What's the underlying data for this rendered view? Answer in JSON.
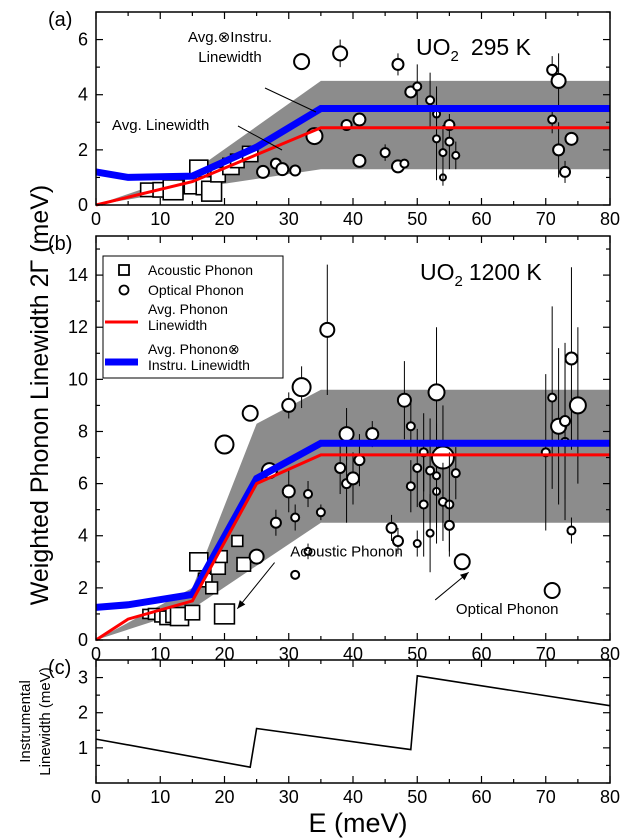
{
  "figure": {
    "ylabel_main": "Weighted Phonon Linewidth 2Γ (meV)",
    "xlabel": "E (meV)",
    "colors": {
      "band": "#8c8c8c",
      "red": "#ff0000",
      "blue": "#0000ff"
    }
  },
  "chart_data": [
    {
      "panel": "(a)",
      "type": "scatter",
      "title": "UO",
      "title_sub": "2",
      "title_tail": "295 K",
      "xlim": [
        0,
        80
      ],
      "ylim": [
        0,
        7
      ],
      "xticks": [
        0,
        10,
        20,
        30,
        40,
        50,
        60,
        70,
        80
      ],
      "yticks": [
        0,
        2,
        4,
        6
      ],
      "band_upper": [
        [
          15,
          1.2
        ],
        [
          35,
          4.5
        ],
        [
          80,
          4.5
        ]
      ],
      "band_lower": [
        [
          0,
          0
        ],
        [
          15,
          0.6
        ],
        [
          35,
          1.3
        ],
        [
          80,
          1.3
        ]
      ],
      "series": [
        {
          "name": "Avg.⊗Instru. Linewidth",
          "label_lines": [
            "Avg.⊗Instru.",
            "Linewidth"
          ],
          "values": [
            [
              0,
              1.2
            ],
            [
              5,
              1.0
            ],
            [
              15,
              1.05
            ],
            [
              25,
              2.1
            ],
            [
              35,
              3.5
            ],
            [
              80,
              3.5
            ]
          ]
        },
        {
          "name": "Avg. Linewidth",
          "label_lines": [
            "Avg. Linewidth"
          ],
          "values": [
            [
              0,
              0
            ],
            [
              15,
              0.85
            ],
            [
              35,
              2.8
            ],
            [
              80,
              2.8
            ]
          ]
        }
      ],
      "acoustic": [
        [
          8,
          0.55,
          1.5
        ],
        [
          10,
          0.55,
          1.6
        ],
        [
          12,
          0.55,
          2.2
        ],
        [
          15,
          0.7,
          1.8
        ],
        [
          16,
          1.3,
          2.0
        ],
        [
          17,
          0.7,
          2.0
        ],
        [
          18,
          0.5,
          2.2
        ],
        [
          19,
          1.1,
          1.6
        ],
        [
          21,
          1.4,
          1.8
        ],
        [
          22,
          1.6,
          1.5
        ],
        [
          24,
          1.85,
          1.7
        ]
      ],
      "optical": [
        [
          26,
          1.2,
          1.2,
          0
        ],
        [
          28,
          1.5,
          1.0,
          0
        ],
        [
          29,
          1.3,
          1.2,
          0
        ],
        [
          31,
          1.25,
          1.0,
          0
        ],
        [
          32,
          5.2,
          1.5,
          0
        ],
        [
          34,
          2.5,
          1.6,
          0.3
        ],
        [
          38,
          5.5,
          1.4,
          0.5
        ],
        [
          39,
          2.9,
          1.0,
          0
        ],
        [
          41,
          3.1,
          1.2,
          0
        ],
        [
          41,
          1.6,
          1.2,
          0
        ],
        [
          45,
          1.9,
          0.9,
          0.3
        ],
        [
          47,
          1.4,
          1.2,
          0.2
        ],
        [
          47,
          5.1,
          1.1,
          0.4
        ],
        [
          48,
          1.5,
          0.8,
          0
        ],
        [
          49,
          4.1,
          1.1,
          0
        ],
        [
          50,
          4.3,
          0.8,
          0.8
        ],
        [
          52,
          3.8,
          0.8,
          1.0
        ],
        [
          53,
          3.3,
          0.7,
          1.0
        ],
        [
          53,
          2.4,
          0.7,
          1.5
        ],
        [
          54,
          1.0,
          0.6,
          0.3
        ],
        [
          54,
          1.9,
          0.7,
          1.0
        ],
        [
          55,
          2.3,
          0.8,
          1.0
        ],
        [
          55,
          2.9,
          1.0,
          0
        ],
        [
          56,
          1.8,
          0.7,
          0.5
        ],
        [
          71,
          4.9,
          1.0,
          0.5
        ],
        [
          71,
          3.1,
          0.8,
          0.5
        ],
        [
          72,
          4.5,
          1.4,
          1.0
        ],
        [
          72,
          2.0,
          1.1,
          1.0
        ],
        [
          73,
          1.2,
          1.0,
          0.4
        ],
        [
          74,
          2.4,
          1.2,
          0
        ]
      ]
    },
    {
      "panel": "(b)",
      "type": "scatter",
      "title": "UO",
      "title_sub": "2",
      "title_tail": "1200 K",
      "xlim": [
        0,
        80
      ],
      "ylim": [
        0,
        15.5
      ],
      "xticks": [
        0,
        10,
        20,
        30,
        40,
        50,
        60,
        70,
        80
      ],
      "yticks": [
        0,
        2,
        4,
        6,
        8,
        10,
        12,
        14
      ],
      "band_upper": [
        [
          15,
          2.0
        ],
        [
          25,
          8.3
        ],
        [
          35,
          9.6
        ],
        [
          80,
          9.6
        ]
      ],
      "band_lower": [
        [
          0,
          0
        ],
        [
          15,
          1.2
        ],
        [
          35,
          4.5
        ],
        [
          80,
          4.5
        ]
      ],
      "series": [
        {
          "name": "Avg. Phonon⊗Instru. Linewidth",
          "values": [
            [
              0,
              1.25
            ],
            [
              5,
              1.35
            ],
            [
              15,
              1.75
            ],
            [
              25,
              6.2
            ],
            [
              35,
              7.55
            ],
            [
              80,
              7.55
            ]
          ]
        },
        {
          "name": "Avg. Phonon Linewidth",
          "values": [
            [
              0,
              0
            ],
            [
              5,
              0.8
            ],
            [
              15,
              1.5
            ],
            [
              25,
              6.0
            ],
            [
              35,
              7.1
            ],
            [
              80,
              7.1
            ]
          ]
        }
      ],
      "acoustic": [
        [
          8,
          1.0,
          1.0
        ],
        [
          9,
          1.0,
          1.2
        ],
        [
          10,
          0.9,
          1.2
        ],
        [
          11,
          0.85,
          1.5
        ],
        [
          12,
          0.95,
          1.6
        ],
        [
          13,
          0.9,
          2.0
        ],
        [
          15,
          1.05,
          1.6
        ],
        [
          16,
          3.0,
          2.0
        ],
        [
          17,
          2.3,
          1.5
        ],
        [
          18,
          2.0,
          1.3
        ],
        [
          19,
          2.8,
          1.6
        ],
        [
          19.5,
          3.2,
          1.3
        ],
        [
          20,
          1.0,
          2.2
        ],
        [
          22,
          3.8,
          1.2
        ],
        [
          23,
          2.9,
          1.5
        ]
      ],
      "optical": [
        [
          20,
          7.5,
          1.8,
          0
        ],
        [
          24,
          8.7,
          1.5,
          0
        ],
        [
          25,
          3.2,
          1.4,
          0
        ],
        [
          27,
          6.5,
          1.5,
          0
        ],
        [
          28,
          4.5,
          1.0,
          0.5
        ],
        [
          30,
          9.0,
          1.3,
          0.5
        ],
        [
          30,
          5.7,
          1.2,
          0.8
        ],
        [
          31,
          2.5,
          0.8,
          0
        ],
        [
          31,
          4.7,
          0.8,
          0.5
        ],
        [
          32,
          9.7,
          1.8,
          0.8
        ],
        [
          33,
          5.6,
          0.8,
          0.5
        ],
        [
          33,
          3.4,
          0.7,
          0.3
        ],
        [
          35,
          4.9,
          0.8,
          0.3
        ],
        [
          36,
          11.9,
          1.4,
          2.5
        ],
        [
          38,
          6.6,
          1.0,
          1.0
        ],
        [
          39,
          6.0,
          0.9,
          1.5
        ],
        [
          39,
          7.9,
          1.4,
          1.0
        ],
        [
          40,
          6.2,
          1.2,
          1.0
        ],
        [
          41,
          6.9,
          1.0,
          1.0
        ],
        [
          43,
          7.9,
          1.2,
          0.5
        ],
        [
          46,
          4.3,
          1.0,
          0.5
        ],
        [
          47,
          3.8,
          1.0,
          0.5
        ],
        [
          48,
          9.2,
          1.3,
          1.5
        ],
        [
          49,
          5.9,
          0.8,
          1.0
        ],
        [
          49,
          8.2,
          0.8,
          1.0
        ],
        [
          50,
          3.7,
          0.7,
          0.5
        ],
        [
          50,
          6.6,
          0.8,
          1.5
        ],
        [
          51,
          5.2,
          0.8,
          2.0
        ],
        [
          51,
          7.2,
          0.8,
          1.5
        ],
        [
          52,
          6.5,
          0.8,
          2.0
        ],
        [
          52,
          4.1,
          0.7,
          1.5
        ],
        [
          53,
          5.7,
          0.7,
          2.0
        ],
        [
          53,
          6.3,
          0.7,
          2.0
        ],
        [
          53,
          9.5,
          1.6,
          2.5
        ],
        [
          54,
          7.0,
          2.2,
          2.0
        ],
        [
          54,
          5.3,
          0.8,
          1.5
        ],
        [
          55,
          5.2,
          0.8,
          2.0
        ],
        [
          55,
          4.4,
          0.9,
          1.0
        ],
        [
          56,
          6.4,
          0.8,
          1.0
        ],
        [
          57,
          3.0,
          1.5,
          0
        ],
        [
          70,
          7.2,
          0.8,
          3.0
        ],
        [
          71,
          9.3,
          0.8,
          3.5
        ],
        [
          71,
          1.9,
          1.5,
          0
        ],
        [
          72,
          8.2,
          1.5,
          3.0
        ],
        [
          73,
          7.6,
          0.8,
          3.0
        ],
        [
          73,
          8.4,
          1.0,
          3.0
        ],
        [
          74,
          10.8,
          1.2,
          3.5
        ],
        [
          74,
          4.2,
          0.8,
          0.5
        ],
        [
          75,
          9.0,
          1.6,
          3.0
        ]
      ],
      "legend": [
        {
          "kind": "square",
          "label_lines": [
            "Acoustic Phonon"
          ]
        },
        {
          "kind": "circle",
          "label_lines": [
            "Optical Phonon"
          ]
        },
        {
          "kind": "red",
          "label_lines": [
            "Avg. Phonon",
            "Linewidth"
          ]
        },
        {
          "kind": "blue",
          "label_lines": [
            "Avg. Phonon⊗",
            "Instru. Linewidth"
          ]
        }
      ],
      "annotations": [
        {
          "text": "Acoustic Phonon",
          "text_at": [
            39,
            3.2
          ],
          "arrow_to": [
            22,
            1.2
          ]
        },
        {
          "text": "Optical Phonon",
          "text_at": [
            64,
            1.0
          ],
          "arrow_to": [
            58,
            2.6
          ]
        }
      ]
    },
    {
      "panel": "(c)",
      "type": "line",
      "ylabel_lines": [
        "Instrumental",
        "Linewidth (meV)"
      ],
      "xlim": [
        0,
        80
      ],
      "ylim": [
        0,
        3.5
      ],
      "xticks": [
        0,
        10,
        20,
        30,
        40,
        50,
        60,
        70,
        80
      ],
      "yticks": [
        1,
        2,
        3
      ],
      "series": [
        {
          "values": [
            [
              0,
              1.25
            ],
            [
              24,
              0.45
            ],
            [
              25,
              1.55
            ],
            [
              49,
              0.95
            ],
            [
              50,
              3.05
            ],
            [
              80,
              2.2
            ]
          ]
        }
      ]
    }
  ]
}
